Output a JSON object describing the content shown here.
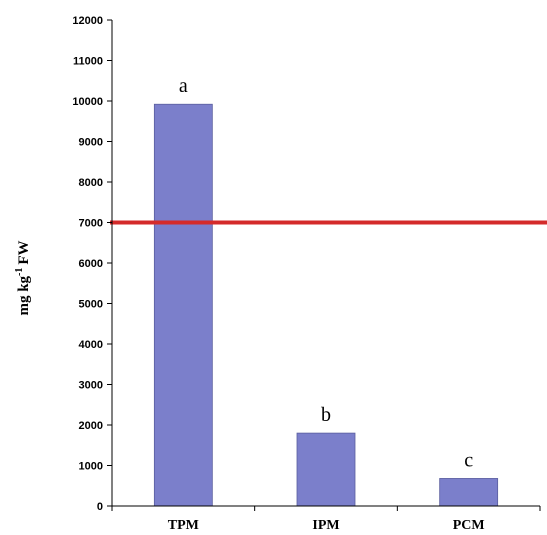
{
  "chart_data": {
    "type": "bar",
    "title": "",
    "xlabel": "",
    "ylabel": "mg kg",
    "ylabel_superscript": "-1",
    "ylabel_suffix": "FW",
    "categories": [
      "TPM",
      "IPM",
      "PCM"
    ],
    "values": [
      9920,
      1800,
      680
    ],
    "annotations": [
      "a",
      "b",
      "c"
    ],
    "ylim": [
      0,
      12000
    ],
    "yticks": [
      0,
      1000,
      2000,
      3000,
      4000,
      5000,
      6000,
      7000,
      8000,
      9000,
      10000,
      11000,
      12000
    ],
    "reference_line": {
      "value": 7000,
      "color": "#d42a2a"
    },
    "bar_color": "#7b7fcb",
    "grid": false,
    "legend": "none"
  }
}
